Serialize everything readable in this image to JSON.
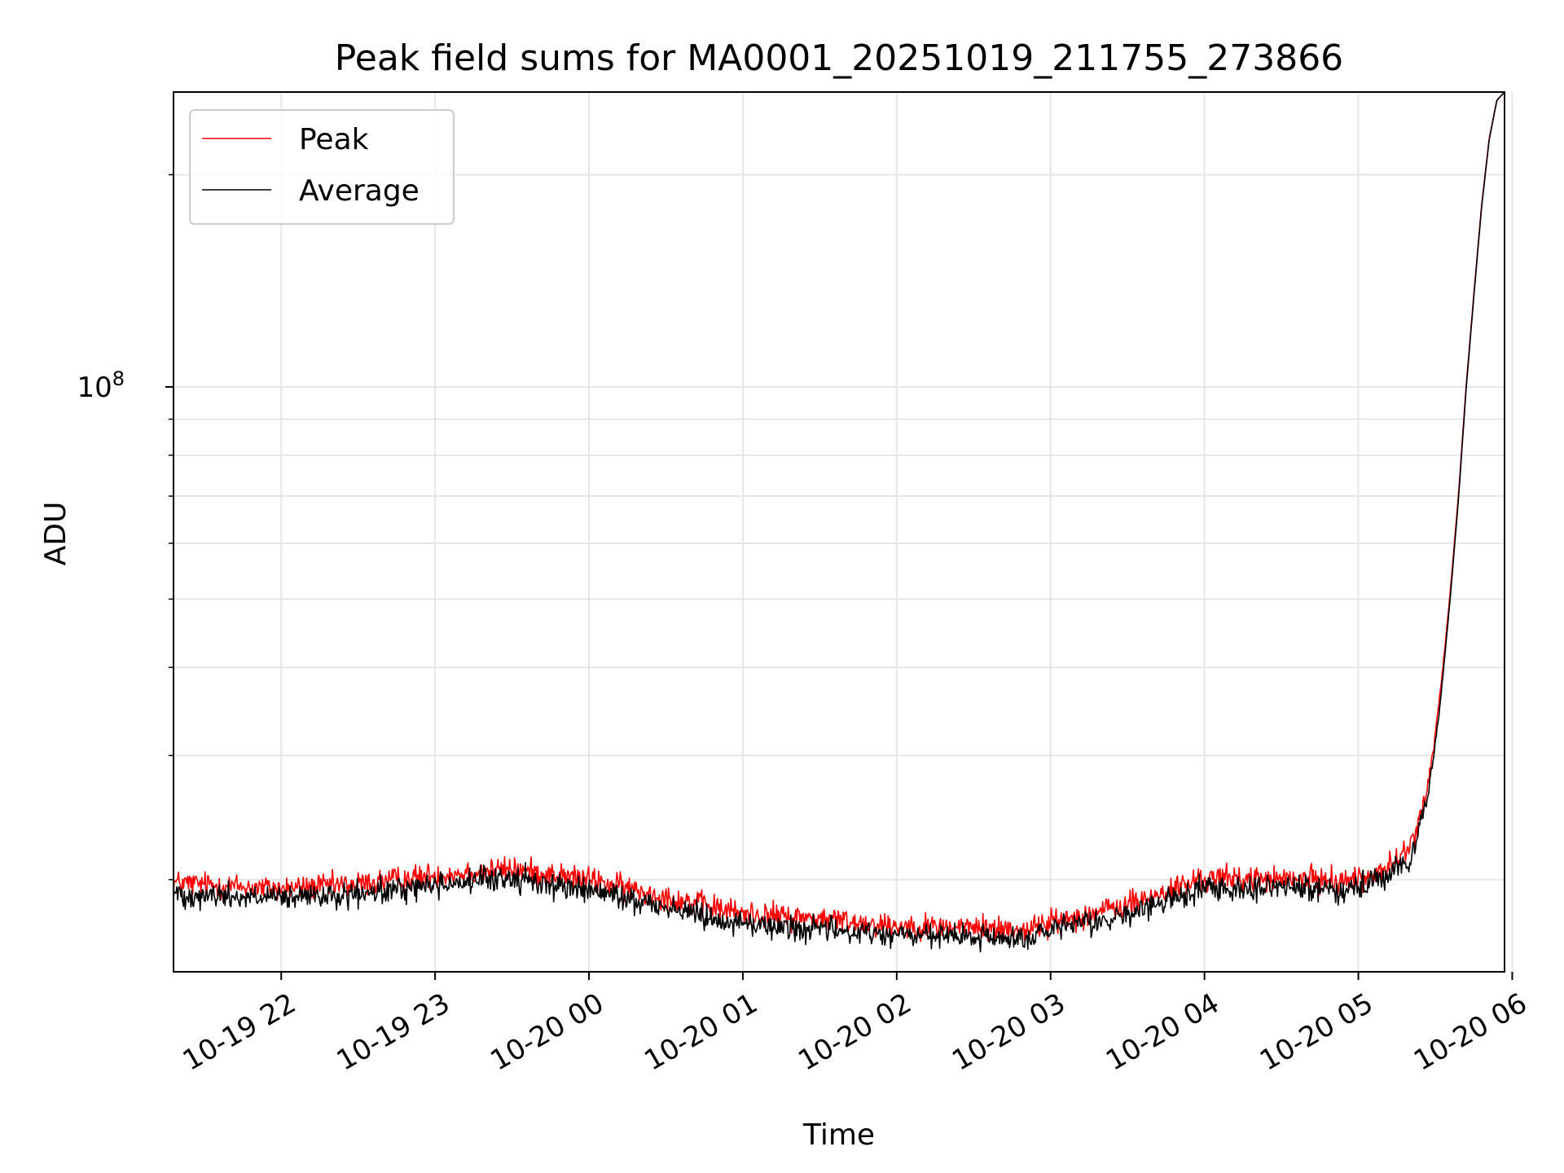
{
  "chart_data": {
    "type": "line",
    "title": "Peak field sums for MA0001_20251019_211755_273866",
    "xlabel": "Time",
    "ylabel": "ADU",
    "yscale": "log",
    "ylim": [
      14800000,
      262000000
    ],
    "xlim_hours": [
      -2.7,
      5.95
    ],
    "y_major_ticks": [
      {
        "value": 100000000,
        "base": "10",
        "exponent": "8"
      }
    ],
    "y_minor_tick_values": [
      20000000,
      30000000,
      40000000,
      50000000,
      60000000,
      70000000,
      80000000,
      90000000,
      200000000
    ],
    "x_ticks": [
      {
        "hour": -2,
        "label": "10-19 22"
      },
      {
        "hour": -1,
        "label": "10-19 23"
      },
      {
        "hour": 0,
        "label": "10-20 00"
      },
      {
        "hour": 1,
        "label": "10-20 01"
      },
      {
        "hour": 2,
        "label": "10-20 02"
      },
      {
        "hour": 3,
        "label": "10-20 03"
      },
      {
        "hour": 4,
        "label": "10-20 04"
      },
      {
        "hour": 5,
        "label": "10-20 05"
      },
      {
        "hour": 6,
        "label": "10-20 06"
      }
    ],
    "grid": true,
    "legend_position": "top-left",
    "series": [
      {
        "name": "Peak",
        "color": "#ff0000",
        "noise": 0.018,
        "x_hours": [
          -2.7,
          -2.0,
          -1.5,
          -1.0,
          -0.5,
          0.0,
          0.5,
          1.0,
          1.5,
          2.0,
          2.5,
          2.85,
          3.0,
          3.5,
          4.0,
          4.5,
          5.0,
          5.2,
          5.35,
          5.45,
          5.5,
          5.55,
          5.6,
          5.65,
          5.7,
          5.75,
          5.8,
          5.85,
          5.9,
          5.95
        ],
        "values": [
          19800000,
          19400000,
          19700000,
          20300000,
          20700000,
          20000000,
          18900000,
          17900000,
          17600000,
          17200000,
          17100000,
          17000000,
          17400000,
          18400000,
          20100000,
          20000000,
          20000000,
          20800000,
          22400000,
          27000000,
          32000000,
          40000000,
          52000000,
          70000000,
          100000000,
          135000000,
          180000000,
          225000000,
          255000000,
          262000000
        ]
      },
      {
        "name": "Average",
        "color": "#000000",
        "noise": 0.018,
        "x_hours": [
          -2.7,
          -2.0,
          -1.5,
          -1.0,
          -0.5,
          0.0,
          0.5,
          1.0,
          1.5,
          2.0,
          2.5,
          2.85,
          3.0,
          3.5,
          4.0,
          4.5,
          5.0,
          5.2,
          5.35,
          5.45,
          5.5,
          5.55,
          5.6,
          5.65,
          5.7,
          5.75,
          5.8,
          5.85,
          5.9,
          5.95
        ],
        "values": [
          19100000,
          18800000,
          19000000,
          19700000,
          20100000,
          19300000,
          18300000,
          17300000,
          17000000,
          16700000,
          16550000,
          16500000,
          16900000,
          17800000,
          19500000,
          19500000,
          19400000,
          20200000,
          21800000,
          26000000,
          31000000,
          39000000,
          51000000,
          69000000,
          99000000,
          134000000,
          179000000,
          224000000,
          255000000,
          262000000
        ]
      }
    ]
  }
}
